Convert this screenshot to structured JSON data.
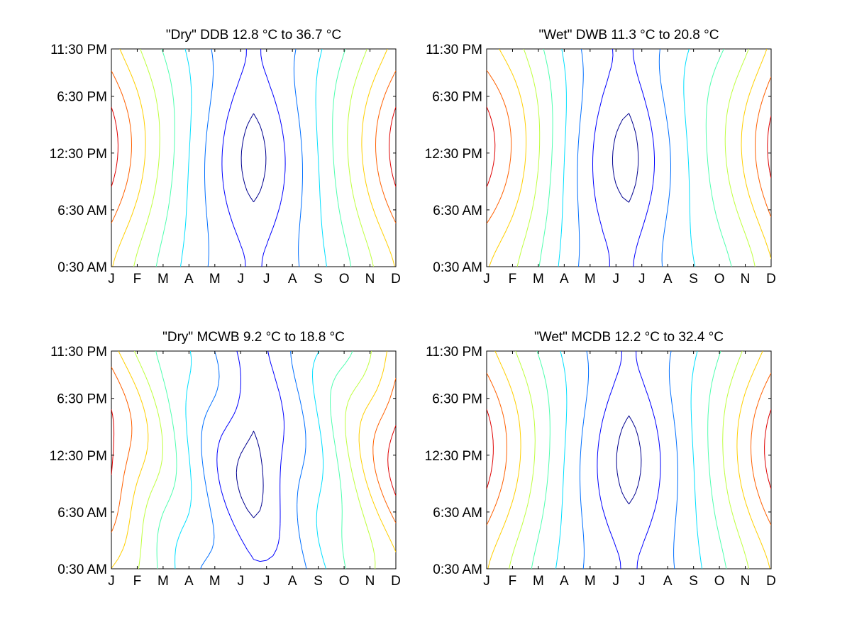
{
  "chart_data": [
    {
      "type": "contour",
      "title": "\"Dry\" DDB  12.8 °C to  36.7 °C",
      "xlabel": "",
      "ylabel": "",
      "x_tick_labels": [
        "J",
        "F",
        "M",
        "A",
        "M",
        "J",
        "J",
        "A",
        "S",
        "O",
        "N",
        "D"
      ],
      "y_tick_labels": [
        "0:30 AM",
        "6:30 AM",
        "12:30 PM",
        "6:30 PM",
        "11:30 PM"
      ],
      "y_hours": [
        0.5,
        6.5,
        12.5,
        18.5,
        23.5
      ],
      "z_range": [
        12.8,
        36.7
      ],
      "levels": 9,
      "colormap": "jet"
    },
    {
      "type": "contour",
      "title": "\"Wet\" DWB  11.3 °C to  20.8 °C",
      "xlabel": "",
      "ylabel": "",
      "x_tick_labels": [
        "J",
        "F",
        "M",
        "A",
        "M",
        "J",
        "J",
        "A",
        "S",
        "O",
        "N",
        "D"
      ],
      "y_tick_labels": [
        "0:30 AM",
        "6:30 AM",
        "12:30 PM",
        "6:30 PM",
        "11:30 PM"
      ],
      "y_hours": [
        0.5,
        6.5,
        12.5,
        18.5,
        23.5
      ],
      "z_range": [
        11.3,
        20.8
      ],
      "levels": 9,
      "colormap": "jet"
    },
    {
      "type": "contour",
      "title": "\"Dry\" MCWB   9.2 °C to  18.8 °C",
      "xlabel": "",
      "ylabel": "",
      "x_tick_labels": [
        "J",
        "F",
        "M",
        "A",
        "M",
        "J",
        "J",
        "A",
        "S",
        "O",
        "N",
        "D"
      ],
      "y_tick_labels": [
        "0:30 AM",
        "6:30 AM",
        "12:30 PM",
        "6:30 PM",
        "11:30 PM"
      ],
      "y_hours": [
        0.5,
        6.5,
        12.5,
        18.5,
        23.5
      ],
      "z_range": [
        9.2,
        18.8
      ],
      "levels": 9,
      "colormap": "jet"
    },
    {
      "type": "contour",
      "title": "\"Wet\" MCDB  12.2 °C to  32.4 °C",
      "xlabel": "",
      "ylabel": "",
      "x_tick_labels": [
        "J",
        "F",
        "M",
        "A",
        "M",
        "J",
        "J",
        "A",
        "S",
        "O",
        "N",
        "D"
      ],
      "y_tick_labels": [
        "0:30 AM",
        "6:30 AM",
        "12:30 PM",
        "6:30 PM",
        "11:30 PM"
      ],
      "y_hours": [
        0.5,
        6.5,
        12.5,
        18.5,
        23.5
      ],
      "z_range": [
        12.2,
        32.4
      ],
      "levels": 9,
      "colormap": "jet"
    }
  ],
  "contour_colors": [
    "#00008f",
    "#0000ff",
    "#006fff",
    "#00dfff",
    "#4fffaf",
    "#bfff3f",
    "#ffcf00",
    "#ff6000",
    "#df0000"
  ]
}
